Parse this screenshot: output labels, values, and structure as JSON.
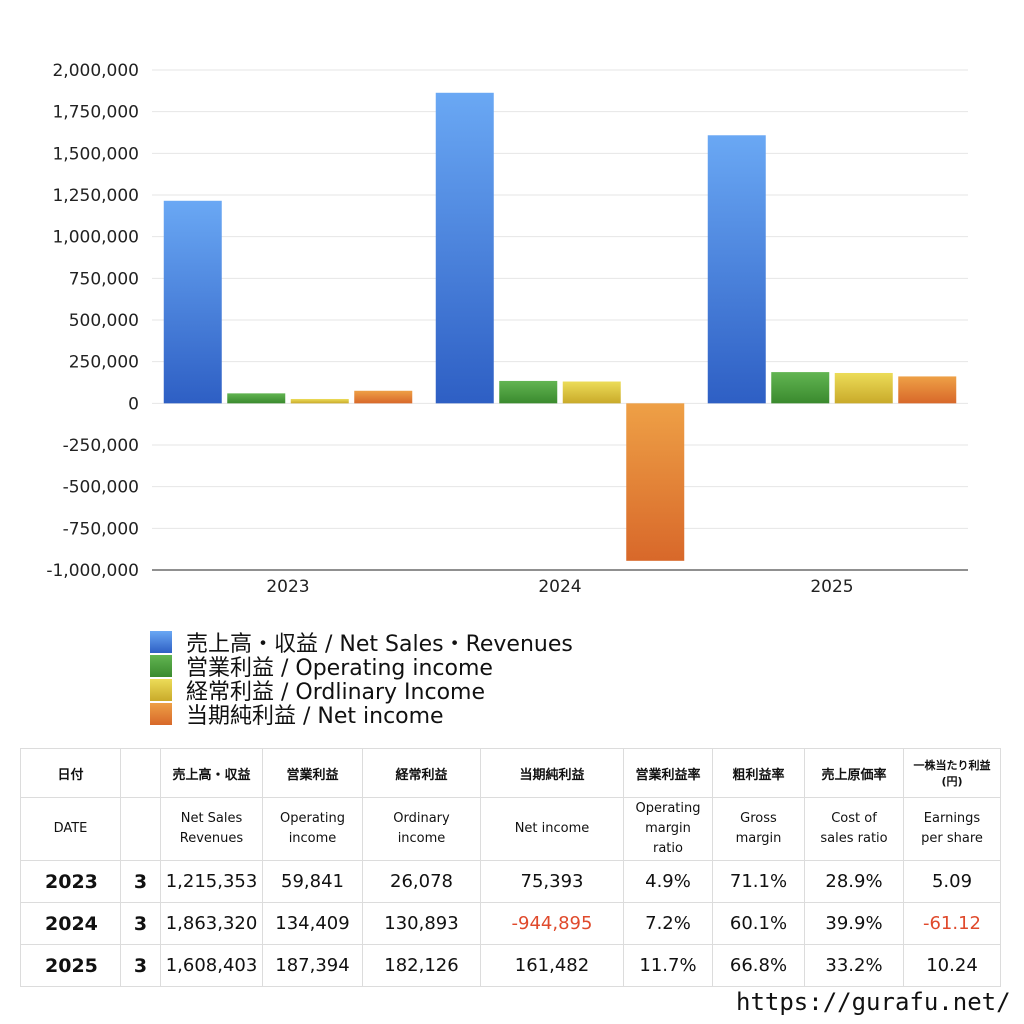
{
  "colors": {
    "net_sales": "#3f78d8",
    "operating_income": "#4a9a3a",
    "ordinary_income": "#d8c23a",
    "net_income": "#e07a2c",
    "negative_text": "#e04a2c"
  },
  "chart_data": {
    "type": "bar",
    "categories": [
      "2023",
      "2024",
      "2025"
    ],
    "series": [
      {
        "name": "売上高・収益 / Net Sales・Revenues",
        "values": [
          1215353,
          1863320,
          1608403
        ]
      },
      {
        "name": "営業利益 / Operating income",
        "values": [
          59841,
          134409,
          187394
        ]
      },
      {
        "name": "経常利益 / Ordlinary Income",
        "values": [
          26078,
          130893,
          182126
        ]
      },
      {
        "name": "当期純利益 / Net income",
        "values": [
          75393,
          -944895,
          161482
        ]
      }
    ],
    "ylim": [
      -1000000,
      2000000
    ],
    "yticks": [
      2000000,
      1750000,
      1500000,
      1250000,
      1000000,
      750000,
      500000,
      250000,
      0,
      -250000,
      -500000,
      -750000,
      -1000000
    ],
    "ytick_labels": [
      "2,000,000",
      "1,750,000",
      "1,500,000",
      "1,250,000",
      "1,000,000",
      "750,000",
      "500,000",
      "250,000",
      "0",
      "-250,000",
      "-500,000",
      "-750,000",
      "-1,000,000"
    ],
    "grid": true,
    "legend": "bottom-left",
    "title": "",
    "xlabel": "",
    "ylabel": ""
  },
  "table": {
    "headers_jp": [
      "日付",
      "売上高・収益",
      "営業利益",
      "経常利益",
      "当期純利益",
      "営業利益率",
      "粗利益率",
      "売上原価率",
      "一株当たり利益\n(円)"
    ],
    "headers_en": [
      "DATE",
      "Net Sales\nRevenues",
      "Operating\nincome",
      "Ordinary\nincome",
      "Net income",
      "Operating\nmargin\nratio",
      "Gross\nmargin",
      "Cost of\nsales ratio",
      "Earnings\nper share"
    ],
    "rows": [
      {
        "year": "2023",
        "month": "3",
        "net_sales": "1,215,353",
        "operating_income": "59,841",
        "ordinary_income": "26,078",
        "net_income": "75,393",
        "operating_margin": "4.9%",
        "gross_margin": "71.1%",
        "cost_ratio": "28.9%",
        "eps": "5.09"
      },
      {
        "year": "2024",
        "month": "3",
        "net_sales": "1,863,320",
        "operating_income": "134,409",
        "ordinary_income": "130,893",
        "net_income": "-944,895",
        "operating_margin": "7.2%",
        "gross_margin": "60.1%",
        "cost_ratio": "39.9%",
        "eps": "-61.12"
      },
      {
        "year": "2025",
        "month": "3",
        "net_sales": "1,608,403",
        "operating_income": "187,394",
        "ordinary_income": "182,126",
        "net_income": "161,482",
        "operating_margin": "11.7%",
        "gross_margin": "66.8%",
        "cost_ratio": "33.2%",
        "eps": "10.24"
      }
    ]
  },
  "site_url": "https://gurafu.net/"
}
